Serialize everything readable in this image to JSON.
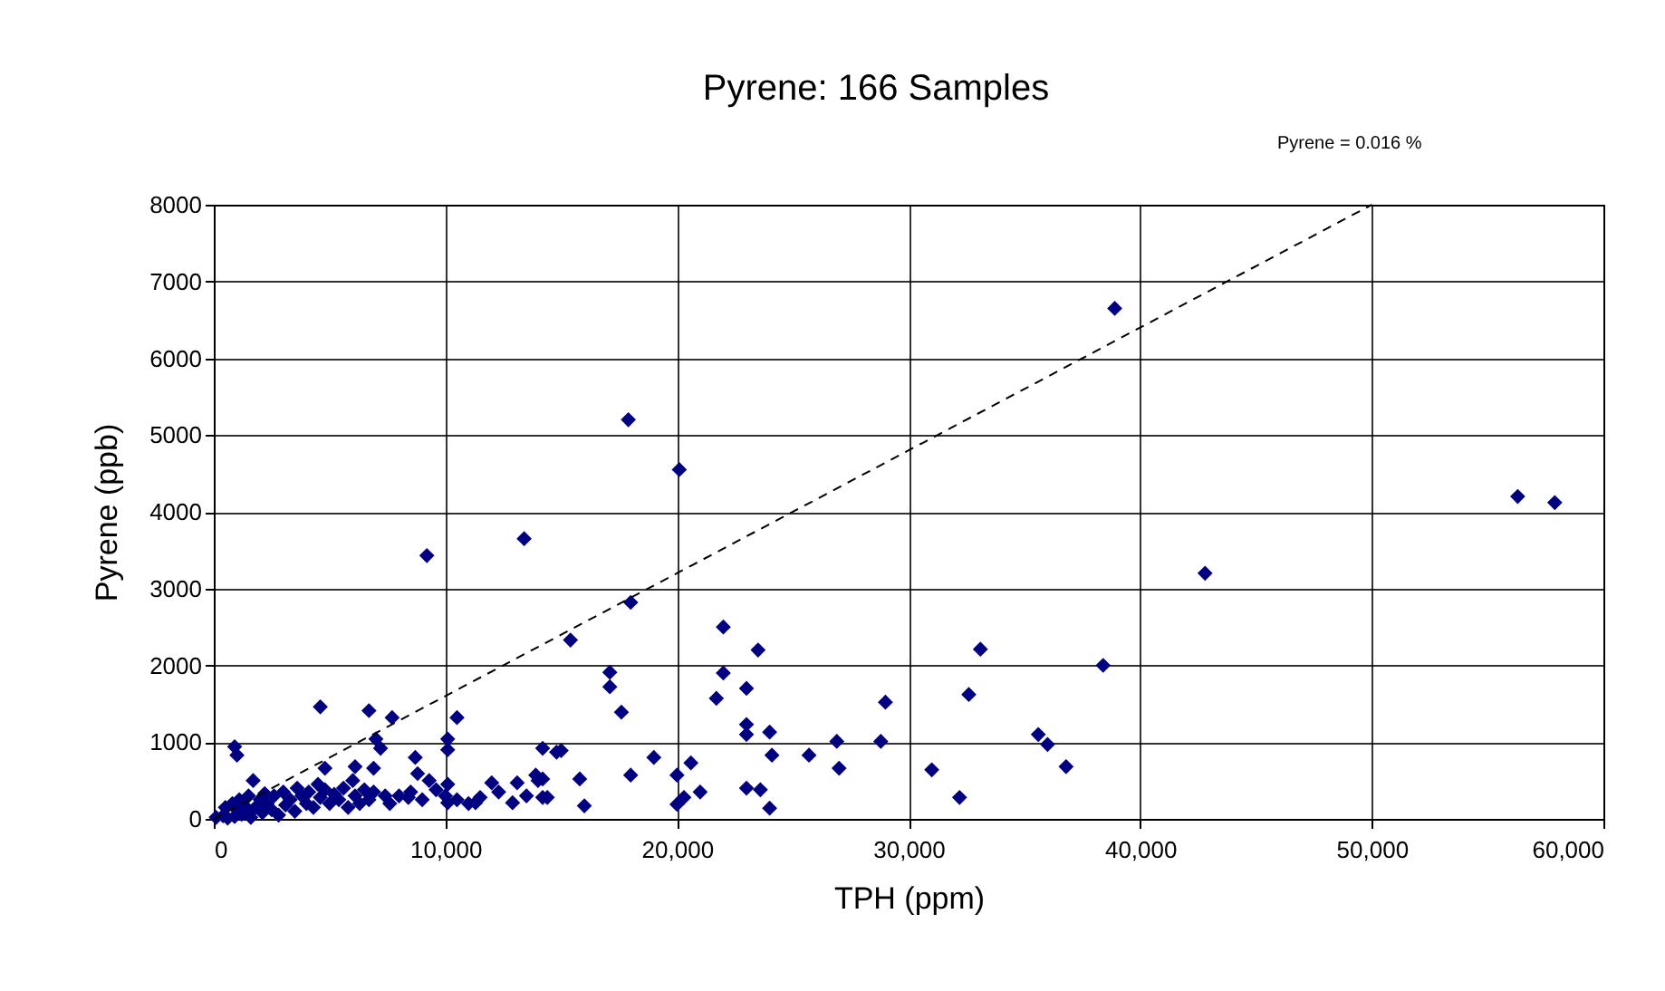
{
  "chart_data": {
    "type": "scatter",
    "title": "Pyrene:  166 Samples",
    "xlabel": "TPH (ppm)",
    "ylabel": "Pyrene (ppb)",
    "annotations": [
      "Pyrene = 0.016 %"
    ],
    "xlim": [
      0,
      60000
    ],
    "xticks": [
      0,
      {
        "value": 10000,
        "label": "10,000"
      },
      {
        "value": 20000,
        "label": "20,000"
      },
      {
        "value": 30000,
        "label": "30,000"
      },
      {
        "value": 40000,
        "label": "40,000"
      },
      {
        "value": 50000,
        "label": "50,000"
      },
      {
        "value": 60000,
        "label": "60,000"
      }
    ],
    "ylim": [
      0,
      8000
    ],
    "yticks": [
      0,
      1000,
      2000,
      3000,
      4000,
      5000,
      6000,
      7000,
      8000
    ],
    "grid": true,
    "series": [
      {
        "marker": "diamond",
        "color": "#000080",
        "x": [
          38900,
          17900,
          20100,
          56300,
          57900,
          13400,
          9200,
          42800,
          18000,
          15400,
          22000,
          23500,
          33100,
          38400,
          17100,
          22000,
          17100,
          23000,
          17600,
          21700,
          29000,
          32600,
          10500,
          7700,
          4600,
          6700,
          7000,
          7200,
          10100,
          10100,
          900,
          1000,
          23000,
          23000,
          24000,
          24100,
          25700,
          26900,
          27000,
          28800,
          31000,
          32200,
          23000,
          23600,
          24000,
          21000,
          20600,
          20000,
          20300,
          20000,
          19000,
          18000,
          15000,
          15800,
          16000,
          14200,
          14400,
          14200,
          35600,
          36000,
          36800,
          8700,
          14000,
          14800,
          1700,
          4800,
          6100,
          6900,
          8800,
          12000,
          13100,
          13900,
          10100,
          10100,
          11300,
          12900,
          14200,
          8400,
          100,
          400,
          500,
          600,
          800,
          900,
          1000,
          1100,
          1200,
          1300,
          1400,
          1500,
          1600,
          1800,
          2000,
          2100,
          2300,
          2500,
          2600,
          2800,
          3000,
          3100,
          3300,
          3500,
          3600,
          3800,
          4000,
          4100,
          4300,
          4500,
          4600,
          4800,
          5000,
          5200,
          5400,
          5600,
          5800,
          6000,
          6100,
          6300,
          6500,
          6700,
          6900,
          7400,
          7600,
          8000,
          8500,
          9000,
          9300,
          9600,
          10000,
          10500,
          11000,
          11500,
          12300,
          13500,
          2200
        ],
        "values": [
          6650,
          5200,
          4550,
          4200,
          4120,
          3650,
          3430,
          3200,
          2820,
          2330,
          2500,
          2200,
          2210,
          2000,
          1910,
          1900,
          1720,
          1700,
          1390,
          1570,
          1520,
          1620,
          1320,
          1320,
          1460,
          1410,
          1040,
          920,
          1040,
          900,
          940,
          830,
          1230,
          1100,
          1130,
          830,
          830,
          1010,
          660,
          1010,
          640,
          280,
          400,
          380,
          140,
          350,
          730,
          570,
          280,
          190,
          800,
          570,
          890,
          520,
          170,
          920,
          280,
          520,
          1100,
          970,
          680,
          800,
          500,
          870,
          500,
          660,
          680,
          660,
          590,
          470,
          470,
          570,
          450,
          210,
          210,
          210,
          280,
          280,
          20,
          40,
          150,
          10,
          200,
          30,
          120,
          250,
          60,
          180,
          100,
          300,
          20,
          150,
          250,
          80,
          200,
          120,
          300,
          50,
          350,
          180,
          250,
          100,
          400,
          300,
          200,
          350,
          150,
          450,
          280,
          380,
          200,
          320,
          250,
          400,
          150,
          500,
          300,
          200,
          380,
          250,
          350,
          300,
          200,
          300,
          350,
          250,
          500,
          380,
          300,
          250,
          200,
          280,
          350,
          300,
          330
        ]
      },
      {
        "type": "line",
        "color": "#000000",
        "line_style": "dashed",
        "marker": "none",
        "x": [
          0,
          50000
        ],
        "values": [
          0,
          8000
        ]
      }
    ]
  }
}
